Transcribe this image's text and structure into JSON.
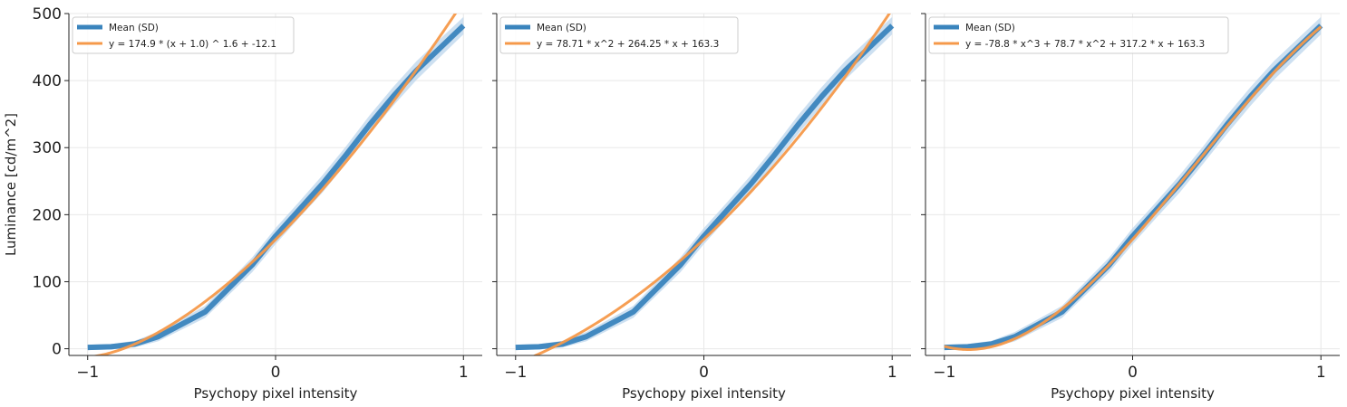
{
  "figure": {
    "ylabel": "Luminance [cd/m^2]",
    "xlabel": "Psychopy pixel intensity"
  },
  "colors": {
    "mean": "#3a84bd",
    "sd_band": "#bcd5ec",
    "fit": "#f5994a",
    "grid": "#e8e8e8",
    "axis": "#222222"
  },
  "chart_data": [
    {
      "type": "line",
      "title": "",
      "xlabel": "Psychopy pixel intensity",
      "ylabel": "Luminance [cd/m^2]",
      "xlim": [
        -1.1,
        1.1
      ],
      "ylim": [
        -10,
        500
      ],
      "xticks": [
        -1,
        0,
        1
      ],
      "xtick_labels": [
        "−1",
        "0",
        "1"
      ],
      "yticks": [
        0,
        100,
        200,
        300,
        400,
        500
      ],
      "ytick_labels": [
        "0",
        "100",
        "200",
        "300",
        "400",
        "500"
      ],
      "grid": true,
      "legend_position": "upper-left",
      "x": [
        -1.0,
        -0.875,
        -0.75,
        -0.625,
        -0.375,
        -0.125,
        0.0,
        0.125,
        0.25,
        0.375,
        0.5,
        0.625,
        0.75,
        1.0
      ],
      "series": [
        {
          "name": "Mean (SD)",
          "values": [
            2,
            3,
            7,
            18,
            55,
            125,
            168,
            207,
            246,
            289,
            334,
            376,
            415,
            482
          ],
          "sd": [
            4,
            4,
            5,
            7,
            9,
            11,
            12,
            12,
            13,
            13,
            14,
            14,
            14,
            13
          ]
        },
        {
          "name": "y = 174.9 * (x + 1.0) ^ 1.6 + -12.1",
          "fit": "power",
          "params": [
            174.9,
            1.0,
            1.6,
            -12.1
          ]
        }
      ]
    },
    {
      "type": "line",
      "title": "",
      "xlabel": "Psychopy pixel intensity",
      "ylabel": "",
      "xlim": [
        -1.1,
        1.1
      ],
      "ylim": [
        -10,
        500
      ],
      "xticks": [
        -1,
        0,
        1
      ],
      "xtick_labels": [
        "−1",
        "0",
        "1"
      ],
      "yticks": [
        0,
        100,
        200,
        300,
        400,
        500
      ],
      "ytick_labels": [],
      "grid": true,
      "legend_position": "upper-left",
      "x": [
        -1.0,
        -0.875,
        -0.75,
        -0.625,
        -0.375,
        -0.125,
        0.0,
        0.125,
        0.25,
        0.375,
        0.5,
        0.625,
        0.75,
        1.0
      ],
      "series": [
        {
          "name": "Mean (SD)",
          "values": [
            2,
            3,
            7,
            18,
            55,
            125,
            168,
            207,
            246,
            289,
            334,
            376,
            415,
            482
          ],
          "sd": [
            4,
            4,
            5,
            7,
            9,
            11,
            12,
            12,
            13,
            13,
            14,
            14,
            14,
            13
          ]
        },
        {
          "name": "y = 78.71 * x^2 + 264.25 * x + 163.3",
          "fit": "poly",
          "params": [
            78.71,
            264.25,
            163.3
          ]
        }
      ]
    },
    {
      "type": "line",
      "title": "",
      "xlabel": "Psychopy pixel intensity",
      "ylabel": "",
      "xlim": [
        -1.1,
        1.1
      ],
      "ylim": [
        -10,
        500
      ],
      "xticks": [
        -1,
        0,
        1
      ],
      "xtick_labels": [
        "−1",
        "0",
        "1"
      ],
      "yticks": [
        0,
        100,
        200,
        300,
        400,
        500
      ],
      "ytick_labels": [],
      "grid": true,
      "legend_position": "upper-left",
      "x": [
        -1.0,
        -0.875,
        -0.75,
        -0.625,
        -0.375,
        -0.125,
        0.0,
        0.125,
        0.25,
        0.375,
        0.5,
        0.625,
        0.75,
        1.0
      ],
      "series": [
        {
          "name": "Mean (SD)",
          "values": [
            2,
            3,
            7,
            18,
            55,
            125,
            168,
            207,
            246,
            289,
            334,
            376,
            415,
            482
          ],
          "sd": [
            4,
            4,
            5,
            7,
            9,
            11,
            12,
            12,
            13,
            13,
            14,
            14,
            14,
            13
          ]
        },
        {
          "name": "y = -78.8 * x^3 + 78.7 * x^2 + 317.2 * x + 163.3",
          "fit": "poly",
          "params": [
            -78.8,
            78.7,
            317.2,
            163.3
          ]
        }
      ]
    }
  ]
}
